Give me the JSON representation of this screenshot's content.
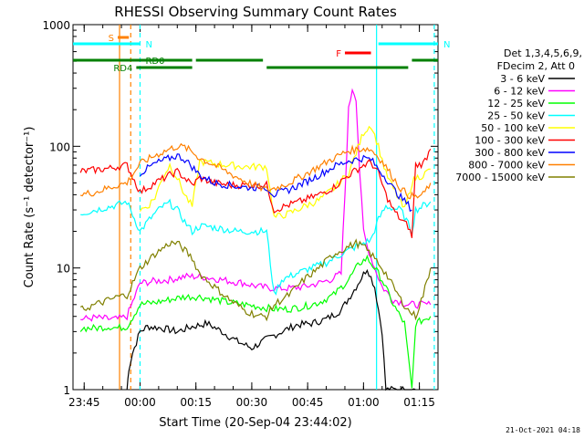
{
  "chart_data": {
    "type": "line",
    "title": "RHESSI Observing Summary Count Rates",
    "xlabel": "Start Time (20-Sep-04 23:44:02)",
    "ylabel": "Count Rate (s⁻¹ detector⁻¹)",
    "yscale": "log",
    "ylim": [
      1,
      1000
    ],
    "xlim_minutes": [
      -2,
      96
    ],
    "x_unit": "minutes after 23:44:02",
    "x_ticks": [
      {
        "label": "23:45",
        "min": 1
      },
      {
        "label": "00:00",
        "min": 16
      },
      {
        "label": "00:15",
        "min": 31
      },
      {
        "label": "00:30",
        "min": 46
      },
      {
        "label": "00:45",
        "min": 61
      },
      {
        "label": "01:00",
        "min": 76
      },
      {
        "label": "01:15",
        "min": 91
      }
    ],
    "y_ticks": [
      {
        "label": "1",
        "v": 1
      },
      {
        "label": "10",
        "v": 10
      },
      {
        "label": "100",
        "v": 100
      },
      {
        "label": "1000",
        "v": 1000
      }
    ],
    "legend_header": [
      "Det 1,3,4,5,6,9,",
      "FDecim 2, Att 0"
    ],
    "series": [
      {
        "name": "3 - 6 keV",
        "color": "#000000",
        "points": [
          [
            12.5,
            1
          ],
          [
            13,
            1.5
          ],
          [
            14,
            2
          ],
          [
            16,
            3
          ],
          [
            18,
            3.3
          ],
          [
            22,
            3.2
          ],
          [
            26,
            3
          ],
          [
            30,
            3.3
          ],
          [
            34,
            3.5
          ],
          [
            38,
            3
          ],
          [
            42,
            2.5
          ],
          [
            46,
            2.2
          ],
          [
            50,
            2.6
          ],
          [
            54,
            3
          ],
          [
            58,
            3.4
          ],
          [
            62,
            3.5
          ],
          [
            66,
            3.8
          ],
          [
            70,
            4.5
          ],
          [
            74,
            7
          ],
          [
            77,
            10
          ],
          [
            79,
            7
          ],
          [
            81,
            3
          ],
          [
            82,
            1
          ],
          [
            90,
            1
          ]
        ]
      },
      {
        "name": "6 - 12 keV",
        "color": "#ff00ff",
        "points": [
          [
            0,
            3.8
          ],
          [
            4,
            3.9
          ],
          [
            8,
            3.8
          ],
          [
            10,
            3.8
          ],
          [
            12.5,
            4
          ],
          [
            16,
            7.5
          ],
          [
            20,
            7.8
          ],
          [
            24,
            8
          ],
          [
            28,
            8.5
          ],
          [
            32,
            8.5
          ],
          [
            36,
            8.2
          ],
          [
            40,
            7.8
          ],
          [
            44,
            7.5
          ],
          [
            48,
            7
          ],
          [
            52,
            6.8
          ],
          [
            56,
            6.8
          ],
          [
            60,
            7
          ],
          [
            64,
            7.5
          ],
          [
            67,
            8
          ],
          [
            70,
            9
          ],
          [
            71,
            40
          ],
          [
            72,
            200
          ],
          [
            73,
            300
          ],
          [
            74,
            250
          ],
          [
            75,
            60
          ],
          [
            76,
            20
          ],
          [
            77,
            15
          ],
          [
            79,
            10
          ],
          [
            81,
            7
          ],
          [
            84,
            5.5
          ],
          [
            88,
            5
          ],
          [
            91,
            5
          ],
          [
            94,
            5
          ]
        ]
      },
      {
        "name": "12 - 25 keV",
        "color": "#00ff00",
        "points": [
          [
            0,
            3.2
          ],
          [
            4,
            3.2
          ],
          [
            8,
            3.3
          ],
          [
            10,
            3.2
          ],
          [
            12.5,
            3.3
          ],
          [
            16,
            5
          ],
          [
            20,
            5.2
          ],
          [
            24,
            5.5
          ],
          [
            28,
            5.8
          ],
          [
            32,
            5.8
          ],
          [
            36,
            5.5
          ],
          [
            40,
            5.2
          ],
          [
            44,
            5
          ],
          [
            48,
            4.8
          ],
          [
            52,
            4.6
          ],
          [
            56,
            4.6
          ],
          [
            60,
            4.8
          ],
          [
            64,
            5.2
          ],
          [
            68,
            6
          ],
          [
            72,
            8
          ],
          [
            75,
            11
          ],
          [
            77,
            12
          ],
          [
            79,
            10
          ],
          [
            81,
            8
          ],
          [
            84,
            5
          ],
          [
            87,
            3.5
          ],
          [
            89,
            1
          ],
          [
            90,
            3.5
          ],
          [
            94,
            4
          ]
        ]
      },
      {
        "name": "25 - 50 keV",
        "color": "#00ffff",
        "points": [
          [
            0,
            28
          ],
          [
            4,
            30
          ],
          [
            8,
            32
          ],
          [
            10,
            33
          ],
          [
            12.5,
            35
          ],
          [
            16,
            20
          ],
          [
            18,
            24
          ],
          [
            20,
            28
          ],
          [
            22,
            32
          ],
          [
            24,
            34
          ],
          [
            26,
            30
          ],
          [
            28,
            24
          ],
          [
            30,
            20
          ],
          [
            32,
            22
          ],
          [
            34,
            22
          ],
          [
            38,
            21
          ],
          [
            42,
            20
          ],
          [
            46,
            20
          ],
          [
            50,
            20
          ],
          [
            52,
            6
          ],
          [
            54,
            8
          ],
          [
            58,
            9
          ],
          [
            62,
            10
          ],
          [
            66,
            11
          ],
          [
            70,
            13
          ],
          [
            74,
            15
          ],
          [
            78,
            17
          ],
          [
            80,
            25
          ],
          [
            82,
            32
          ],
          [
            86,
            30
          ],
          [
            89,
            20
          ],
          [
            90,
            30
          ],
          [
            94,
            35
          ]
        ]
      },
      {
        "name": "50 - 100 keV",
        "color": "#ffff00",
        "points": [
          [
            16,
            30
          ],
          [
            18,
            32
          ],
          [
            20,
            38
          ],
          [
            22,
            55
          ],
          [
            24,
            70
          ],
          [
            26,
            55
          ],
          [
            28,
            40
          ],
          [
            30,
            32
          ],
          [
            32,
            75
          ],
          [
            36,
            72
          ],
          [
            40,
            70
          ],
          [
            44,
            68
          ],
          [
            48,
            68
          ],
          [
            50,
            68
          ],
          [
            52,
            26
          ],
          [
            56,
            28
          ],
          [
            60,
            32
          ],
          [
            64,
            36
          ],
          [
            68,
            45
          ],
          [
            72,
            60
          ],
          [
            76,
            130
          ],
          [
            78,
            150
          ],
          [
            80,
            100
          ],
          [
            82,
            60
          ],
          [
            84,
            45
          ],
          [
            87,
            30
          ],
          [
            89,
            50
          ],
          [
            90,
            55
          ],
          [
            92,
            58
          ],
          [
            94,
            65
          ]
        ]
      },
      {
        "name": "100 - 300 keV",
        "color": "#ff0000",
        "points": [
          [
            0,
            62
          ],
          [
            4,
            64
          ],
          [
            8,
            66
          ],
          [
            10,
            68
          ],
          [
            12.5,
            70
          ],
          [
            16,
            42
          ],
          [
            20,
            50
          ],
          [
            24,
            58
          ],
          [
            26,
            62
          ],
          [
            28,
            55
          ],
          [
            30,
            48
          ],
          [
            32,
            55
          ],
          [
            36,
            50
          ],
          [
            40,
            48
          ],
          [
            44,
            48
          ],
          [
            48,
            48
          ],
          [
            50,
            48
          ],
          [
            52,
            30
          ],
          [
            56,
            33
          ],
          [
            60,
            36
          ],
          [
            64,
            40
          ],
          [
            68,
            46
          ],
          [
            72,
            58
          ],
          [
            76,
            70
          ],
          [
            78,
            74
          ],
          [
            80,
            60
          ],
          [
            82,
            40
          ],
          [
            84,
            30
          ],
          [
            86,
            25
          ],
          [
            88,
            22
          ],
          [
            89,
            18
          ],
          [
            90,
            70
          ],
          [
            92,
            72
          ],
          [
            94,
            95
          ]
        ]
      },
      {
        "name": "300 - 800 keV",
        "color": "#0000ff",
        "points": [
          [
            16,
            60
          ],
          [
            20,
            72
          ],
          [
            24,
            80
          ],
          [
            26,
            84
          ],
          [
            28,
            78
          ],
          [
            30,
            68
          ],
          [
            32,
            58
          ],
          [
            36,
            50
          ],
          [
            40,
            48
          ],
          [
            44,
            46
          ],
          [
            48,
            46
          ],
          [
            50,
            46
          ],
          [
            52,
            40
          ],
          [
            56,
            44
          ],
          [
            60,
            50
          ],
          [
            64,
            58
          ],
          [
            68,
            68
          ],
          [
            72,
            76
          ],
          [
            76,
            80
          ],
          [
            78,
            78
          ],
          [
            80,
            65
          ],
          [
            82,
            55
          ],
          [
            84,
            45
          ],
          [
            86,
            38
          ],
          [
            88,
            33
          ],
          [
            89,
            30
          ]
        ]
      },
      {
        "name": "800 - 7000 keV",
        "color": "#ff8000",
        "points": [
          [
            0,
            40
          ],
          [
            4,
            42
          ],
          [
            8,
            46
          ],
          [
            10,
            48
          ],
          [
            12.5,
            50
          ],
          [
            16,
            72
          ],
          [
            20,
            84
          ],
          [
            24,
            95
          ],
          [
            26,
            100
          ],
          [
            28,
            98
          ],
          [
            30,
            90
          ],
          [
            32,
            80
          ],
          [
            36,
            70
          ],
          [
            40,
            60
          ],
          [
            44,
            52
          ],
          [
            48,
            46
          ],
          [
            50,
            44
          ],
          [
            52,
            45
          ],
          [
            56,
            50
          ],
          [
            60,
            58
          ],
          [
            64,
            68
          ],
          [
            68,
            80
          ],
          [
            72,
            92
          ],
          [
            76,
            96
          ],
          [
            78,
            94
          ],
          [
            80,
            82
          ],
          [
            82,
            68
          ],
          [
            84,
            55
          ],
          [
            86,
            45
          ],
          [
            88,
            40
          ],
          [
            90,
            38
          ],
          [
            92,
            40
          ],
          [
            94,
            50
          ]
        ]
      },
      {
        "name": "7000 - 15000 keV",
        "color": "#808000",
        "points": [
          [
            0,
            4.5
          ],
          [
            4,
            5
          ],
          [
            8,
            5.5
          ],
          [
            10,
            5.8
          ],
          [
            12.5,
            6
          ],
          [
            16,
            10
          ],
          [
            20,
            13
          ],
          [
            24,
            16
          ],
          [
            26,
            16
          ],
          [
            28,
            14
          ],
          [
            30,
            12
          ],
          [
            32,
            9
          ],
          [
            36,
            7
          ],
          [
            40,
            5.5
          ],
          [
            44,
            4.5
          ],
          [
            48,
            4
          ],
          [
            50,
            4
          ],
          [
            52,
            5
          ],
          [
            56,
            6
          ],
          [
            60,
            8
          ],
          [
            64,
            10
          ],
          [
            68,
            13
          ],
          [
            72,
            15
          ],
          [
            74,
            16
          ],
          [
            76,
            15
          ],
          [
            78,
            13
          ],
          [
            80,
            11
          ],
          [
            82,
            9
          ],
          [
            84,
            7
          ],
          [
            86,
            5.5
          ],
          [
            88,
            4.5
          ],
          [
            90,
            4
          ],
          [
            92,
            6
          ],
          [
            94,
            10
          ]
        ]
      }
    ],
    "annotations": {
      "spans": [
        {
          "label": "S",
          "color": "#ff8000",
          "row": 1,
          "x0": 10,
          "x1": 13
        },
        {
          "label": "N",
          "color": "#00ffff",
          "row": 2,
          "x0": -2,
          "x1": 16
        },
        {
          "label": "N",
          "color": "#00ffff",
          "row": 2,
          "x0": 80,
          "x1": 96
        },
        {
          "label": "F",
          "color": "#ff0000",
          "row": 3,
          "x0": 71,
          "x1": 78
        },
        {
          "label": "RD0",
          "color": "#008000",
          "row": 4,
          "x0": -2,
          "x1": 30
        },
        {
          "label": "RD4",
          "color": "#008000",
          "row": 5,
          "x0": 15,
          "x1": 30
        },
        {
          "label": "",
          "color": "#008000",
          "row": 4,
          "x0": 31,
          "x1": 49
        },
        {
          "label": "",
          "color": "#008000",
          "row": 5,
          "x0": 50,
          "x1": 88
        },
        {
          "label": "",
          "color": "#008000",
          "row": 4,
          "x0": 89,
          "x1": 96
        }
      ],
      "vlines": [
        {
          "min": 10.5,
          "color": "#ff8000",
          "dash": false
        },
        {
          "min": 13.5,
          "color": "#ff8000",
          "dash": true
        },
        {
          "min": 16,
          "color": "#00ffff",
          "dash": true
        },
        {
          "min": 79.5,
          "color": "#00ffff",
          "dash": false
        },
        {
          "min": 95,
          "color": "#00ffff",
          "dash": true
        }
      ]
    },
    "footer_stamp": "21-Oct-2021 04:18"
  }
}
